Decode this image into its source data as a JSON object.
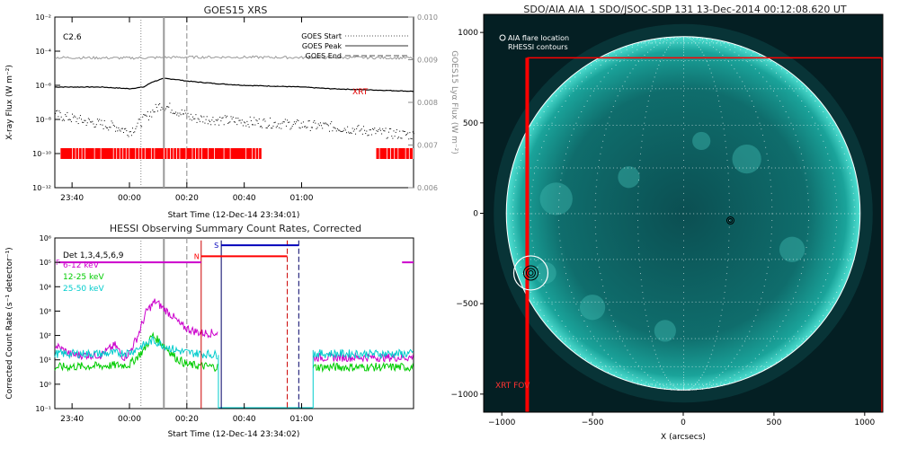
{
  "chart_data": [
    {
      "type": "line",
      "title": "GOES15 XRS",
      "xlabel": "Start Time (12-Dec-14 23:34:01)",
      "ylabel": "X-ray Flux (W m⁻²)",
      "y2label": "GOES15 Lyα Flux (W m⁻²)",
      "flare_class": "C2.6",
      "xrt_label": "XRT",
      "x_range_min": [
        -26,
        99
      ],
      "x_ticks": [
        {
          "label": "23:40",
          "t": -20
        },
        {
          "label": "00:00",
          "t": 0
        },
        {
          "label": "00:20",
          "t": 20
        },
        {
          "label": "00:40",
          "t": 40
        },
        {
          "label": "01:00",
          "t": 60
        }
      ],
      "ylim_log": [
        -12,
        -2
      ],
      "y_ticks": [
        {
          "label": "10⁻²",
          "e": -2
        },
        {
          "label": "10⁻⁴",
          "e": -4
        },
        {
          "label": "10⁻⁶",
          "e": -6
        },
        {
          "label": "10⁻⁸",
          "e": -8
        },
        {
          "label": "10⁻¹⁰",
          "e": -10
        },
        {
          "label": "10⁻¹²",
          "e": -12
        }
      ],
      "y2lim": [
        0.006,
        0.01
      ],
      "y2_ticks": [
        "0.010",
        "0.009",
        "0.008",
        "0.007",
        "0.006"
      ],
      "legend": {
        "position": "top-right",
        "entries": [
          "GOES Start",
          "GOES Peak",
          "GOES End"
        ]
      },
      "markers": {
        "goes_start": 4,
        "goes_peak": 12,
        "goes_end": 20
      },
      "series": [
        {
          "name": "",
          "color": "#000000",
          "x": [
            -26,
            -10,
            0,
            5,
            8,
            12,
            16,
            20,
            30,
            40,
            50,
            60,
            70,
            80,
            90,
            99
          ],
          "y": [
            -6.1,
            -6.1,
            -6.2,
            -6.1,
            -5.8,
            -5.6,
            -5.65,
            -5.75,
            -5.9,
            -6.0,
            -6.05,
            -6.1,
            -6.2,
            -6.25,
            -6.3,
            -6.35
          ]
        },
        {
          "name": "",
          "color": "#000000",
          "x": [
            -26,
            -15,
            -5,
            0,
            4,
            8,
            11,
            14,
            18,
            22,
            30,
            40,
            50,
            60,
            70,
            80,
            90,
            99
          ],
          "y": [
            -7.7,
            -8.1,
            -8.4,
            -8.7,
            -8.1,
            -7.5,
            -7.1,
            -7.3,
            -7.6,
            -7.9,
            -8.0,
            -8.1,
            -8.2,
            -8.3,
            -8.4,
            -8.6,
            -8.8,
            -8.9
          ]
        },
        {
          "name": "",
          "color": "#999999",
          "axis": "y2",
          "x": [
            -26,
            0,
            20,
            40,
            60,
            80,
            99
          ],
          "y": [
            0.00905,
            0.00904,
            0.00906,
            0.00906,
            0.00905,
            0.00905,
            0.00904
          ]
        }
      ],
      "xrt_bars": [
        [
          -24,
          46
        ],
        [
          86,
          99
        ]
      ]
    },
    {
      "type": "line",
      "title": "HESSI Observing Summary Count Rates, Corrected",
      "xlabel": "Start Time (12-Dec-14 23:34:02)",
      "ylabel": "Corrected Count Rate (s⁻¹ detector⁻¹)",
      "detectors": "Det 1,3,4,5,6,9",
      "ylim_log": [
        -1,
        6
      ],
      "x_range_min": [
        -26,
        99
      ],
      "x_ticks": [
        {
          "label": "23:40",
          "t": -20
        },
        {
          "label": "00:00",
          "t": 0
        },
        {
          "label": "00:20",
          "t": 20
        },
        {
          "label": "00:40",
          "t": 40
        },
        {
          "label": "01:00",
          "t": 60
        }
      ],
      "y_ticks": [
        {
          "label": "10⁶",
          "e": 6
        },
        {
          "label": "10⁵",
          "e": 5
        },
        {
          "label": "10⁴",
          "e": 4
        },
        {
          "label": "10³",
          "e": 3
        },
        {
          "label": "10²",
          "e": 2
        },
        {
          "label": "10¹",
          "e": 1
        },
        {
          "label": "10⁰",
          "e": 0
        },
        {
          "label": "10⁻¹",
          "e": -1
        }
      ],
      "flag_labels": {
        "f": "F",
        "n": "N",
        "s": "S"
      },
      "flags": {
        "F": {
          "from": -26,
          "to": 25,
          "level": 5,
          "color": "#cc00cc"
        },
        "N": {
          "from": 25,
          "to": 55,
          "level": 5.25,
          "color": "#ff0000"
        },
        "S": {
          "from": 32,
          "to": 59,
          "level": 5.7,
          "color": "#0000bb"
        }
      },
      "vlines": [
        {
          "t": 25,
          "color": "#cc0000"
        },
        {
          "t": 32,
          "color": "#000066"
        },
        {
          "t": 55,
          "color": "#cc0000",
          "dashed": true
        },
        {
          "t": 59,
          "color": "#000066",
          "dashed": true
        }
      ],
      "series": [
        {
          "name": "6-12 keV",
          "color": "#cc00cc",
          "x": [
            -26,
            -20,
            -10,
            -5,
            -2,
            0,
            3,
            6,
            9,
            12,
            15,
            18,
            22,
            25
          ],
          "y": [
            1.6,
            1.2,
            1.2,
            1.6,
            1.1,
            1.3,
            2.0,
            3.0,
            3.4,
            3.1,
            2.8,
            2.4,
            2.2,
            2.1
          ]
        },
        {
          "name": "12-25 keV",
          "color": "#00cc00",
          "x": [
            -26,
            -10,
            0,
            5,
            8,
            12,
            16,
            20,
            25,
            31
          ],
          "y": [
            0.7,
            0.75,
            0.8,
            1.4,
            2.0,
            1.6,
            1.1,
            0.8,
            0.75,
            0.7
          ]
        },
        {
          "name": "25-50 keV",
          "color": "#00cccc",
          "x": [
            -26,
            -10,
            0,
            5,
            8,
            12,
            16,
            20,
            25,
            31
          ],
          "y": [
            1.25,
            1.25,
            1.3,
            1.6,
            1.8,
            1.6,
            1.4,
            1.3,
            1.25,
            1.2
          ]
        }
      ]
    },
    {
      "type": "heatmap",
      "title": "SDO/AIA AIA_1 SDO/JSOC-SDP 131 13-Dec-2014 00:12:08.620 UT",
      "xlabel": "X (arcsecs)",
      "legend_entries": [
        "AIA flare location",
        "RHESSI contours"
      ],
      "fov_label": "XRT FOV",
      "xlim": [
        -1100,
        1100
      ],
      "ylim": [
        -1100,
        1100
      ],
      "x_ticks": [
        -1000,
        -500,
        0,
        500,
        1000
      ],
      "y_ticks": [
        1000,
        500,
        0,
        -500,
        -1000
      ],
      "fov": {
        "x0": -860,
        "x1": 1100,
        "y0": -1100,
        "y1": 860
      },
      "flare": {
        "x": -840,
        "y": -330
      },
      "contour2": {
        "x": 260,
        "y": -40
      },
      "disk_radius": 975,
      "colors": {
        "disk": "#0d6e6a",
        "limb": "#ffffff",
        "fov": "#ff0000"
      }
    }
  ]
}
